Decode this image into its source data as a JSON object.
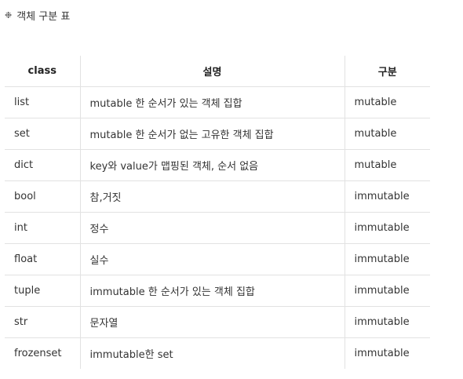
{
  "heading": {
    "bullet": "❉",
    "title": "객체 구분 표"
  },
  "table": {
    "headers": [
      "class",
      "설명",
      "구분"
    ],
    "rows": [
      [
        "list",
        "mutable 한 순서가 있는 객체 집합",
        "mutable"
      ],
      [
        "set",
        "mutable 한 순서가 없는 고유한 객체 집합",
        "mutable"
      ],
      [
        "dict",
        "key와 value가 맵핑된 객체, 순서 없음",
        "mutable"
      ],
      [
        "bool",
        "참,거짓",
        "immutable"
      ],
      [
        "int",
        "정수",
        "immutable"
      ],
      [
        "float",
        "실수",
        "immutable"
      ],
      [
        "tuple",
        "immutable 한 순서가 있는 객체 집합",
        "immutable"
      ],
      [
        "str",
        "문자열",
        "immutable"
      ],
      [
        "frozenset",
        "immutable한 set",
        "immutable"
      ]
    ]
  }
}
